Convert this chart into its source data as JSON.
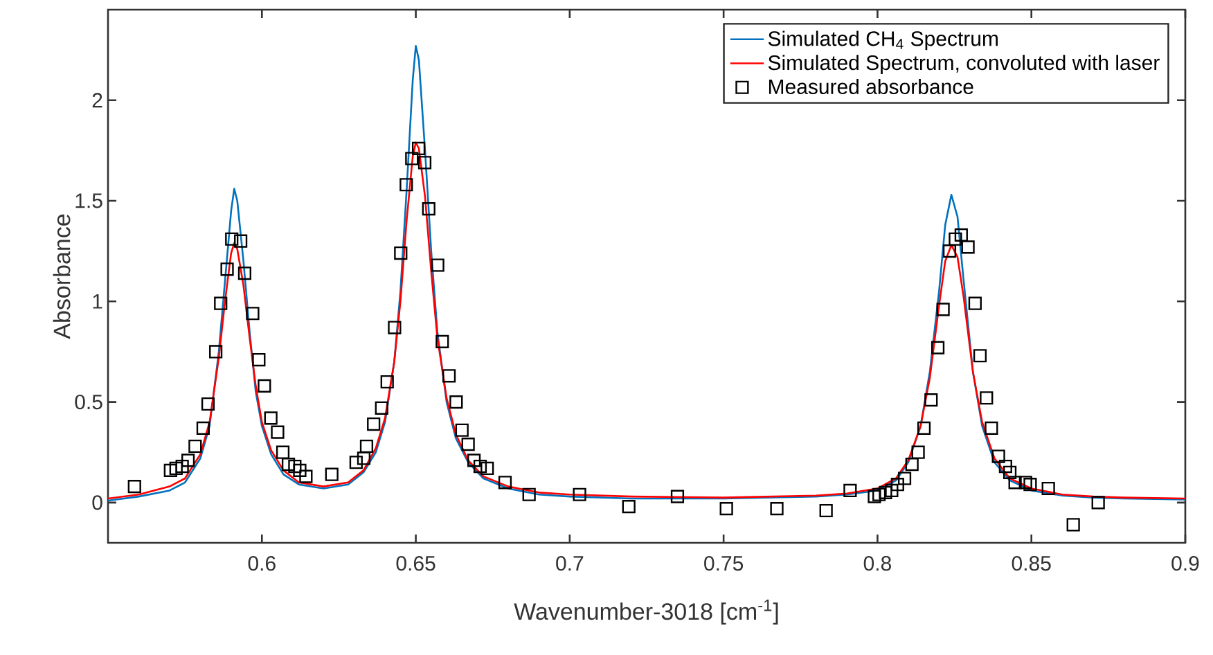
{
  "chart_data": {
    "type": "line",
    "xlabel": "Wavenumber-3018 [cm$^{-1}$]",
    "ylabel": "Absorbance",
    "xlim": [
      0.55,
      0.9
    ],
    "ylim": [
      -0.2,
      2.45
    ],
    "xticks": [
      0.6,
      0.65,
      0.7,
      0.75,
      0.8,
      0.85,
      0.9
    ],
    "yticks": [
      0,
      0.5,
      1,
      1.5,
      2
    ],
    "grid": false,
    "legend": "top right",
    "series": [
      {
        "name": "Simulated CH$_{4}$ Spectrum",
        "color": "#0072bd",
        "marker": "none",
        "line_style": "solid",
        "x": [
          0.55,
          0.56,
          0.57,
          0.575,
          0.58,
          0.583,
          0.586,
          0.588,
          0.59,
          0.591,
          0.592,
          0.594,
          0.596,
          0.598,
          0.6,
          0.603,
          0.607,
          0.612,
          0.62,
          0.628,
          0.633,
          0.637,
          0.64,
          0.643,
          0.645,
          0.647,
          0.649,
          0.65,
          0.651,
          0.653,
          0.655,
          0.657,
          0.66,
          0.663,
          0.667,
          0.672,
          0.68,
          0.69,
          0.7,
          0.72,
          0.75,
          0.78,
          0.79,
          0.8,
          0.806,
          0.81,
          0.814,
          0.817,
          0.82,
          0.822,
          0.824,
          0.826,
          0.828,
          0.831,
          0.834,
          0.838,
          0.843,
          0.85,
          0.86,
          0.87,
          0.88,
          0.9
        ],
        "values": [
          0.01,
          0.03,
          0.06,
          0.1,
          0.22,
          0.38,
          0.75,
          1.1,
          1.45,
          1.56,
          1.5,
          1.2,
          0.85,
          0.55,
          0.38,
          0.24,
          0.14,
          0.09,
          0.07,
          0.09,
          0.15,
          0.25,
          0.4,
          0.7,
          1.05,
          1.55,
          2.1,
          2.27,
          2.2,
          1.75,
          1.25,
          0.85,
          0.5,
          0.32,
          0.2,
          0.12,
          0.07,
          0.04,
          0.03,
          0.02,
          0.02,
          0.03,
          0.04,
          0.06,
          0.11,
          0.2,
          0.38,
          0.65,
          1.05,
          1.38,
          1.53,
          1.42,
          1.1,
          0.65,
          0.38,
          0.2,
          0.11,
          0.06,
          0.035,
          0.025,
          0.02,
          0.015
        ]
      },
      {
        "name": "Simulated Spectrum, convoluted with laser",
        "color": "#ff0000",
        "marker": "none",
        "line_style": "solid",
        "x": [
          0.55,
          0.56,
          0.57,
          0.575,
          0.58,
          0.583,
          0.586,
          0.588,
          0.59,
          0.591,
          0.592,
          0.594,
          0.596,
          0.598,
          0.6,
          0.603,
          0.607,
          0.612,
          0.62,
          0.628,
          0.633,
          0.637,
          0.64,
          0.643,
          0.645,
          0.647,
          0.649,
          0.65,
          0.651,
          0.653,
          0.655,
          0.657,
          0.66,
          0.663,
          0.667,
          0.672,
          0.68,
          0.69,
          0.7,
          0.72,
          0.75,
          0.78,
          0.79,
          0.8,
          0.806,
          0.81,
          0.814,
          0.817,
          0.82,
          0.822,
          0.824,
          0.826,
          0.828,
          0.831,
          0.834,
          0.838,
          0.843,
          0.85,
          0.86,
          0.87,
          0.88,
          0.9
        ],
        "values": [
          0.02,
          0.04,
          0.08,
          0.12,
          0.24,
          0.4,
          0.72,
          1.0,
          1.24,
          1.29,
          1.26,
          1.08,
          0.82,
          0.58,
          0.4,
          0.26,
          0.16,
          0.1,
          0.08,
          0.1,
          0.16,
          0.27,
          0.42,
          0.7,
          1.0,
          1.4,
          1.72,
          1.79,
          1.76,
          1.52,
          1.15,
          0.82,
          0.52,
          0.34,
          0.21,
          0.13,
          0.08,
          0.05,
          0.04,
          0.03,
          0.025,
          0.035,
          0.045,
          0.07,
          0.12,
          0.21,
          0.38,
          0.62,
          0.98,
          1.2,
          1.28,
          1.22,
          1.02,
          0.65,
          0.4,
          0.22,
          0.12,
          0.07,
          0.04,
          0.03,
          0.025,
          0.02
        ]
      },
      {
        "name": "Measured absorbance",
        "type": "scatter",
        "color": "#000000",
        "marker": "square",
        "x": [
          0.5586,
          0.5703,
          0.5721,
          0.5741,
          0.576,
          0.5783,
          0.5809,
          0.5825,
          0.585,
          0.5866,
          0.5887,
          0.5902,
          0.5931,
          0.5944,
          0.597,
          0.599,
          0.6008,
          0.6029,
          0.6051,
          0.6068,
          0.6086,
          0.6107,
          0.6123,
          0.6143,
          0.6227,
          0.6306,
          0.6331,
          0.634,
          0.6363,
          0.6389,
          0.6407,
          0.6431,
          0.6451,
          0.6469,
          0.6487,
          0.6509,
          0.6529,
          0.6542,
          0.6571,
          0.6586,
          0.6608,
          0.6631,
          0.665,
          0.667,
          0.6689,
          0.6709,
          0.6732,
          0.679,
          0.6868,
          0.7032,
          0.7192,
          0.735,
          0.7509,
          0.7673,
          0.7833,
          0.7911,
          0.799,
          0.8005,
          0.8026,
          0.8046,
          0.8065,
          0.8088,
          0.8112,
          0.8132,
          0.8151,
          0.8174,
          0.8196,
          0.8213,
          0.8234,
          0.8253,
          0.8272,
          0.8294,
          0.8317,
          0.8333,
          0.8354,
          0.837,
          0.8393,
          0.8416,
          0.843,
          0.8447,
          0.8481,
          0.8496,
          0.8555,
          0.8636,
          0.8717
        ],
        "values": [
          0.08,
          0.16,
          0.17,
          0.18,
          0.21,
          0.28,
          0.37,
          0.49,
          0.75,
          0.99,
          1.16,
          1.31,
          1.3,
          1.14,
          0.94,
          0.71,
          0.58,
          0.42,
          0.35,
          0.25,
          0.19,
          0.18,
          0.16,
          0.13,
          0.14,
          0.2,
          0.22,
          0.28,
          0.39,
          0.47,
          0.6,
          0.87,
          1.24,
          1.58,
          1.71,
          1.76,
          1.69,
          1.46,
          1.18,
          0.8,
          0.63,
          0.5,
          0.36,
          0.29,
          0.21,
          0.18,
          0.17,
          0.1,
          0.04,
          0.04,
          -0.02,
          0.03,
          -0.03,
          -0.03,
          -0.04,
          0.06,
          0.03,
          0.04,
          0.05,
          0.06,
          0.09,
          0.12,
          0.19,
          0.25,
          0.37,
          0.51,
          0.77,
          0.96,
          1.25,
          1.31,
          1.33,
          1.27,
          0.99,
          0.73,
          0.52,
          0.37,
          0.23,
          0.18,
          0.15,
          0.1,
          0.1,
          0.09,
          0.07,
          -0.11,
          0.0
        ]
      }
    ]
  }
}
